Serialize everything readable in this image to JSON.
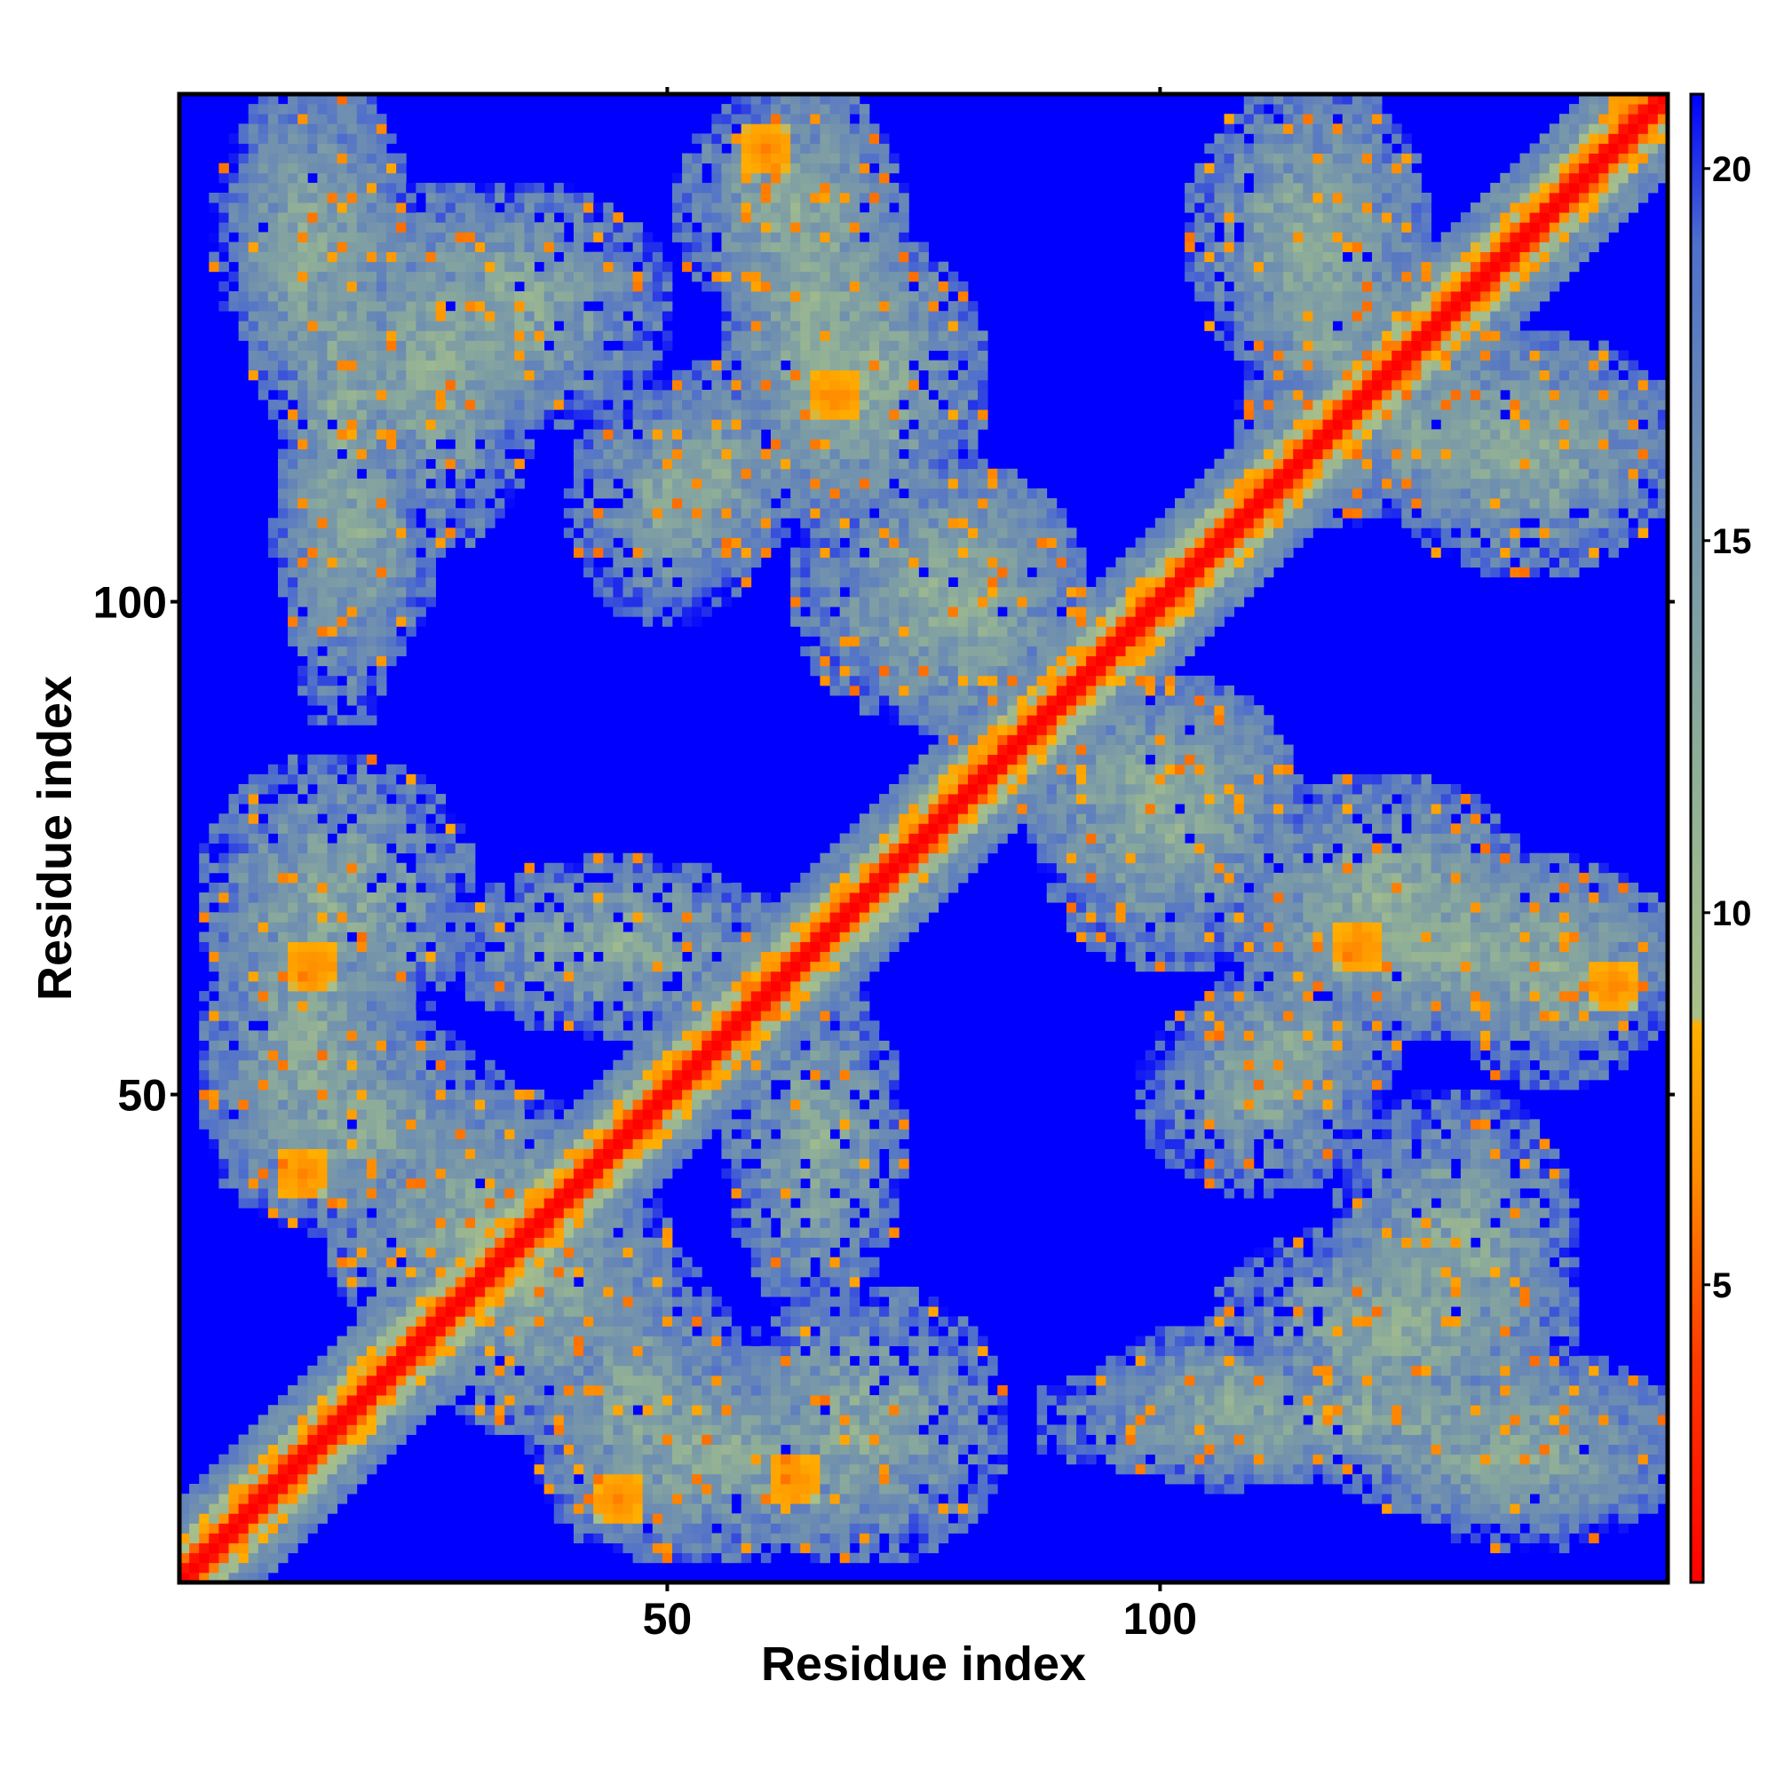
{
  "chart_data": {
    "type": "heatmap",
    "title": "",
    "xlabel": "Residue index",
    "ylabel": "Residue index",
    "n_residues": 151,
    "xlim": [
      1,
      151
    ],
    "ylim": [
      1,
      151
    ],
    "x_ticks": [
      50,
      100
    ],
    "y_ticks": [
      50,
      100
    ],
    "colorbar": {
      "range": [
        1,
        21
      ],
      "ticks": [
        5,
        10,
        15,
        20
      ],
      "stops": [
        {
          "value": 1,
          "color": "#ff0000"
        },
        {
          "value": 4,
          "color": "#ff3a00"
        },
        {
          "value": 6.5,
          "color": "#ff8c00"
        },
        {
          "value": 8.5,
          "color": "#ffb000"
        },
        {
          "value": 8.6,
          "color": "#a9c08a"
        },
        {
          "value": 12,
          "color": "#8fae98"
        },
        {
          "value": 16,
          "color": "#6f8fb0"
        },
        {
          "value": 19,
          "color": "#4f6fcc"
        },
        {
          "value": 21,
          "color": "#0000ff"
        }
      ]
    },
    "diagonal": {
      "value_on": 1,
      "value_off1": 5,
      "value_off2": 7
    },
    "contact_regions": [
      {
        "x": [
          6,
          22
        ],
        "y": [
          125,
          150
        ],
        "level": 12.5
      },
      {
        "x": [
          18,
          35
        ],
        "y": [
          108,
          140
        ],
        "level": 12
      },
      {
        "x": [
          12,
          25
        ],
        "y": [
          95,
          118
        ],
        "level": 12.5
      },
      {
        "x": [
          5,
          28
        ],
        "y": [
          58,
          82
        ],
        "level": 12
      },
      {
        "x": [
          5,
          32
        ],
        "y": [
          38,
          56
        ],
        "level": 12.5
      },
      {
        "x": [
          30,
          60
        ],
        "y": [
          58,
          72
        ],
        "level": 12
      },
      {
        "x": [
          42,
          58
        ],
        "y": [
          100,
          120
        ],
        "level": 12.5
      },
      {
        "x": [
          53,
          72
        ],
        "y": [
          130,
          150
        ],
        "level": 12
      },
      {
        "x": [
          60,
          80
        ],
        "y": [
          110,
          135
        ],
        "level": 11.5
      },
      {
        "x": [
          65,
          90
        ],
        "y": [
          90,
          112
        ],
        "level": 12
      },
      {
        "x": [
          88,
          110
        ],
        "y": [
          72,
          90
        ],
        "level": 12
      },
      {
        "x": [
          110,
          150
        ],
        "y": [
          58,
          72
        ],
        "level": 11.5
      },
      {
        "x": [
          105,
          122
        ],
        "y": [
          48,
          62
        ],
        "level": 12.5
      },
      {
        "x": [
          120,
          140
        ],
        "y": [
          22,
          48
        ],
        "level": 12
      },
      {
        "x": [
          90,
          150
        ],
        "y": [
          12,
          22
        ],
        "level": 12
      },
      {
        "x": [
          120,
          150
        ],
        "y": [
          8,
          18
        ],
        "level": 12.5
      },
      {
        "x": [
          40,
          70
        ],
        "y": [
          5,
          22
        ],
        "level": 12
      },
      {
        "x": [
          25,
          48
        ],
        "y": [
          18,
          45
        ],
        "level": 12
      },
      {
        "x": [
          110,
          150
        ],
        "y": [
          110,
          125
        ],
        "level": 12.5
      },
      {
        "x": [
          105,
          125
        ],
        "y": [
          125,
          150
        ],
        "level": 12
      }
    ],
    "hotspots": [
      {
        "x": 60,
        "y": 146,
        "value": 6
      },
      {
        "x": 67,
        "y": 121,
        "value": 6
      },
      {
        "x": 14,
        "y": 63,
        "value": 6
      },
      {
        "x": 13,
        "y": 42,
        "value": 6
      },
      {
        "x": 45,
        "y": 9,
        "value": 6
      },
      {
        "x": 63,
        "y": 11,
        "value": 6
      },
      {
        "x": 120,
        "y": 65,
        "value": 6
      },
      {
        "x": 146,
        "y": 61,
        "value": 6
      },
      {
        "x": 148,
        "y": 150,
        "value": 6
      }
    ]
  }
}
